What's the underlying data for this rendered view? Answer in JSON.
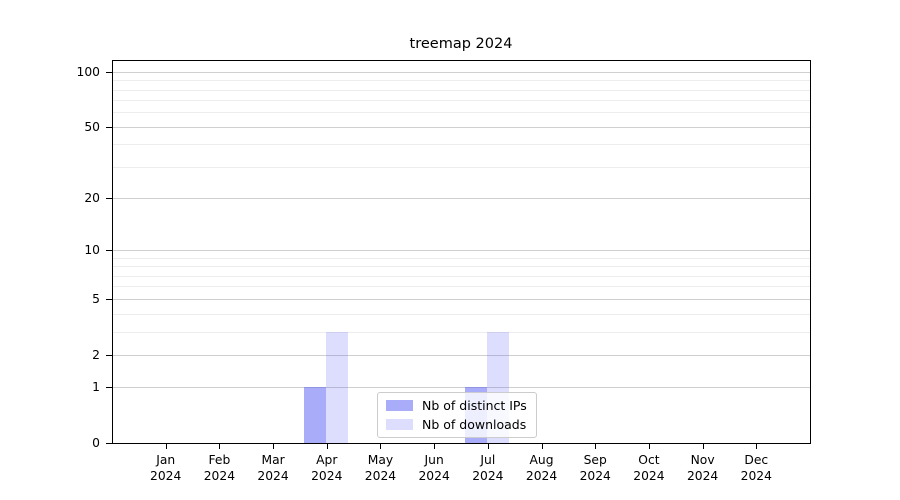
{
  "title": "treemap 2024",
  "chart_data": {
    "type": "bar",
    "title": "treemap 2024",
    "xlabel": "",
    "ylabel": "",
    "scale": "log1p",
    "ylim": [
      0,
      116
    ],
    "categories": [
      "Jan",
      "Feb",
      "Mar",
      "Apr",
      "May",
      "Jun",
      "Jul",
      "Aug",
      "Sep",
      "Oct",
      "Nov",
      "Dec"
    ],
    "category_year": "2024",
    "y_major_ticks": [
      0,
      1,
      2,
      5,
      10,
      20,
      50,
      100
    ],
    "y_minor_ticks": [
      3,
      4,
      6,
      7,
      8,
      9,
      30,
      40,
      60,
      70,
      80,
      90
    ],
    "grid": "on",
    "legend_position": "lower center",
    "series": [
      {
        "name": "Nb of distinct IPs",
        "color": "rgba(84,92,244,0.5)",
        "solid_color": "#a9aefa",
        "values": [
          0,
          0,
          0,
          1,
          0,
          0,
          1,
          0,
          0,
          0,
          0,
          0
        ]
      },
      {
        "name": "Nb of downloads",
        "color": "rgba(84,92,244,0.2)",
        "solid_color": "#d9dbfa",
        "values": [
          0,
          0,
          0,
          3,
          0,
          0,
          3,
          0,
          0,
          0,
          0,
          0
        ]
      }
    ]
  }
}
